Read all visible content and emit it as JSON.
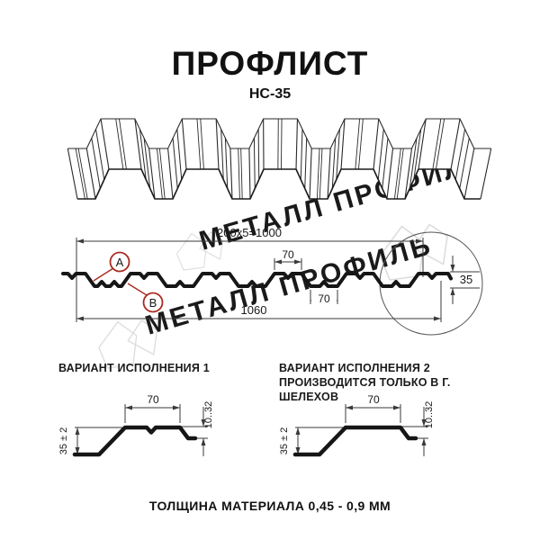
{
  "title": "ПРОФЛИСТ",
  "subtitle": "НС-35",
  "watermark": {
    "text": "МЕТАЛЛ ПРОФИЛЬ",
    "color": "#d8d8d8"
  },
  "section": {
    "dim_pitch": "200x5=1000",
    "dim_top_flat": "70",
    "dim_bottom_flat": "70",
    "dim_total": "1060",
    "dim_height": "35",
    "marker_a": "А",
    "marker_b": "В",
    "marker_color": "#a92c21"
  },
  "variant1": {
    "title": "ВАРИАНТ ИСПОЛНЕНИЯ 1",
    "dim_width": "70",
    "dim_height": "35 ± 2",
    "dim_lip": "10..32"
  },
  "variant2": {
    "title": "ВАРИАНТ ИСПОЛНЕНИЯ 2",
    "subtitle": "ПРОИЗВОДИТСЯ ТОЛЬКО В Г. ШЕЛЕХОВ",
    "dim_width": "70",
    "dim_height": "35 ± 2",
    "dim_lip": "10..32"
  },
  "footer": {
    "note": "ТОЛЩИНА МАТЕРИАЛА 0,45 - 0,9 ММ"
  }
}
